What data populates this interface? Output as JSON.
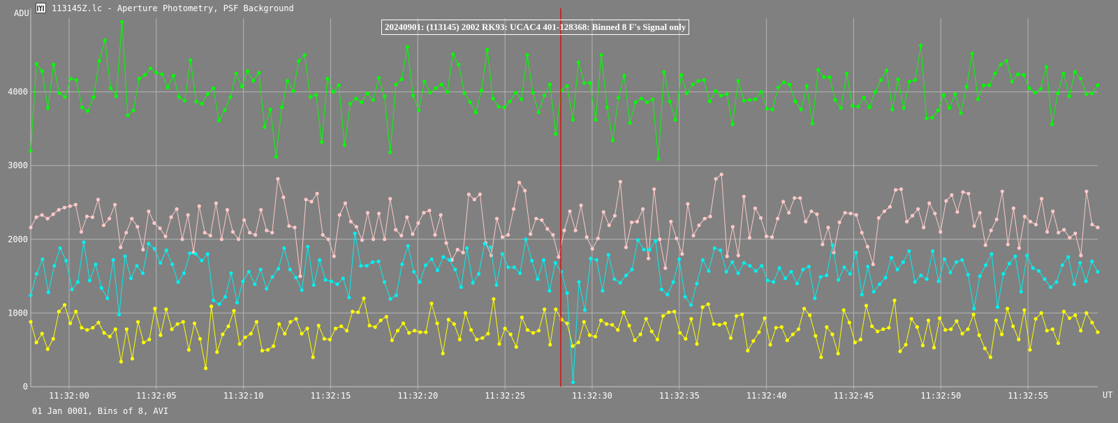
{
  "window": {
    "title": "113145Z.lc - Aperture Photometry, PSF Background",
    "icon": "lightcurve-app-icon"
  },
  "chart_data": {
    "type": "line",
    "title": "20240901: (113145) 2002 RK93: UCAC4 401-128368: Binned 8 F's Signal only",
    "ylabel": "ADU",
    "xlabel": "UT",
    "footer": "01 Jan 0001, Bins of 8, AVI",
    "ylim": [
      0,
      5000
    ],
    "yticks": [
      0,
      1000,
      2000,
      3000,
      4000
    ],
    "xlim_seconds": [
      57.8,
      119.0
    ],
    "xticks": [
      {
        "t": 60,
        "label": "11:32:00"
      },
      {
        "t": 65,
        "label": "11:32:05"
      },
      {
        "t": 70,
        "label": "11:32:10"
      },
      {
        "t": 75,
        "label": "11:32:15"
      },
      {
        "t": 80,
        "label": "11:32:20"
      },
      {
        "t": 85,
        "label": "11:32:25"
      },
      {
        "t": 90,
        "label": "11:32:30"
      },
      {
        "t": 95,
        "label": "11:32:35"
      },
      {
        "t": 100,
        "label": "11:32:40"
      },
      {
        "t": 105,
        "label": "11:32:45"
      },
      {
        "t": 110,
        "label": "11:32:50"
      },
      {
        "t": 115,
        "label": "11:32:55"
      }
    ],
    "cursor_t": 88.2,
    "grid": true,
    "colors": {
      "background": "#808080",
      "grid": "#b4b4b4",
      "cursor": "#e00000"
    },
    "series": [
      {
        "color": "#00ff00",
        "values": [
          3200,
          4380,
          4280,
          3780,
          4370,
          3980,
          3930,
          4180,
          4160,
          3790,
          3740,
          3930,
          4420,
          4700,
          4050,
          3940,
          4950,
          3680,
          3750,
          4180,
          4230,
          4320,
          4260,
          4240,
          4060,
          4220,
          3930,
          3880,
          4430,
          3870,
          3840,
          3970,
          4050,
          3610,
          3750,
          3930,
          4250,
          4070,
          4280,
          4150,
          4260,
          3520,
          3760,
          3120,
          3790,
          4150,
          4010,
          4420,
          4500,
          3930,
          3960,
          3320,
          4180,
          4000,
          4090,
          3280,
          3840,
          3910,
          3860,
          3980,
          3890,
          4190,
          3940,
          3180,
          4100,
          4170,
          4610,
          3950,
          3750,
          4140,
          3990,
          4050,
          4100,
          4000,
          4510,
          4370,
          3980,
          3860,
          3720,
          4020,
          4570,
          3910,
          3800,
          3790,
          3870,
          3990,
          3900,
          4500,
          3990,
          3720,
          3950,
          4100,
          3430,
          4020,
          4080,
          3620,
          4400,
          4120,
          4120,
          3620,
          4500,
          3790,
          3340,
          3920,
          4220,
          3580,
          3860,
          3910,
          3860,
          3900,
          3090,
          4270,
          3870,
          3620,
          4230,
          3980,
          4100,
          4150,
          4160,
          3870,
          4010,
          3950,
          3970,
          3560,
          4150,
          3880,
          3890,
          3900,
          4000,
          3770,
          3760,
          4060,
          4130,
          4100,
          3870,
          3760,
          4080,
          3570,
          4300,
          4200,
          4200,
          3890,
          3780,
          4250,
          3810,
          3800,
          3920,
          3790,
          4000,
          4160,
          4290,
          3760,
          4170,
          3780,
          4140,
          4160,
          4630,
          3640,
          3650,
          3750,
          3960,
          3780,
          3970,
          3710,
          4070,
          4520,
          3900,
          4090,
          4090,
          4250,
          4370,
          4420,
          4140,
          4240,
          4230,
          4050,
          3990,
          4040,
          4340,
          3560,
          3980,
          4250,
          3940,
          4270,
          4180,
          3970,
          3980,
          4090
        ]
      },
      {
        "color": "#ffc8c8",
        "values": [
          2160,
          2300,
          2330,
          2280,
          2340,
          2400,
          2430,
          2450,
          2470,
          2100,
          2310,
          2300,
          2540,
          2190,
          2280,
          2470,
          1890,
          2090,
          2280,
          2170,
          1860,
          2380,
          2220,
          2150,
          2040,
          2300,
          2410,
          2000,
          2330,
          1820,
          2450,
          2090,
          2050,
          2490,
          2000,
          2400,
          2100,
          2000,
          2260,
          2090,
          2060,
          2400,
          2120,
          2090,
          2820,
          2570,
          2180,
          2160,
          1500,
          2540,
          2510,
          2620,
          2060,
          2000,
          1770,
          2330,
          2490,
          2240,
          2170,
          1990,
          2360,
          2000,
          2350,
          2000,
          2550,
          2130,
          2050,
          2300,
          2070,
          2220,
          2360,
          2390,
          2060,
          2330,
          1950,
          1720,
          1860,
          1820,
          2610,
          2540,
          2610,
          1950,
          1780,
          2280,
          2030,
          2060,
          2410,
          2770,
          2660,
          2070,
          2280,
          2260,
          2140,
          2060,
          1760,
          2120,
          2380,
          2120,
          2460,
          2030,
          1870,
          2010,
          2370,
          2190,
          2320,
          2780,
          1890,
          2230,
          2240,
          2410,
          1740,
          2680,
          2000,
          1610,
          2240,
          2010,
          1800,
          2480,
          2050,
          2190,
          2280,
          2310,
          2820,
          2880,
          1770,
          2170,
          1780,
          2580,
          2020,
          2420,
          2290,
          2040,
          2030,
          2280,
          2510,
          2360,
          2560,
          2560,
          2240,
          2380,
          2340,
          1930,
          2160,
          1820,
          2230,
          2360,
          2350,
          2330,
          2090,
          1900,
          1660,
          2290,
          2380,
          2440,
          2670,
          2680,
          2240,
          2320,
          2410,
          2160,
          2490,
          2350,
          2100,
          2520,
          2600,
          2370,
          2640,
          2620,
          2180,
          2360,
          1920,
          2120,
          2270,
          2650,
          1930,
          2420,
          1880,
          2310,
          2240,
          2200,
          2550,
          2100,
          2380,
          2090,
          2130,
          2020,
          2080,
          1780,
          2650,
          2200,
          2160
        ]
      },
      {
        "color": "#00f0f0",
        "values": [
          1240,
          1530,
          1730,
          1280,
          1640,
          1880,
          1710,
          1320,
          1420,
          1960,
          1440,
          1660,
          1340,
          1200,
          1720,
          980,
          1770,
          1470,
          1640,
          1540,
          1940,
          1870,
          1680,
          1850,
          1660,
          1420,
          1540,
          1810,
          1800,
          1710,
          1800,
          1170,
          1120,
          1220,
          1540,
          1140,
          1430,
          1560,
          1390,
          1590,
          1330,
          1490,
          1600,
          1880,
          1590,
          1480,
          1310,
          1900,
          1380,
          1720,
          1450,
          1430,
          1390,
          1470,
          1210,
          2080,
          1640,
          1640,
          1690,
          1700,
          1420,
          1190,
          1240,
          1660,
          1910,
          1560,
          1420,
          1650,
          1730,
          1580,
          1760,
          1720,
          1590,
          1350,
          1880,
          1410,
          1530,
          1940,
          1890,
          1380,
          1800,
          1620,
          1620,
          1540,
          2000,
          1710,
          1460,
          1720,
          1300,
          1680,
          1560,
          1270,
          60,
          1420,
          1040,
          1740,
          1720,
          1300,
          1790,
          1460,
          1410,
          1510,
          1590,
          1990,
          1860,
          1860,
          1980,
          1320,
          1250,
          1420,
          1730,
          1220,
          1110,
          1400,
          1720,
          1570,
          1880,
          1850,
          1560,
          1690,
          1540,
          1680,
          1640,
          1570,
          1640,
          1440,
          1420,
          1610,
          1470,
          1560,
          1400,
          1590,
          1630,
          1200,
          1490,
          1510,
          1920,
          1450,
          1620,
          1530,
          1820,
          1250,
          1630,
          1290,
          1390,
          1480,
          1750,
          1590,
          1690,
          1840,
          1420,
          1510,
          1460,
          1840,
          1430,
          1730,
          1550,
          1690,
          1720,
          1520,
          1060,
          1500,
          1650,
          1800,
          1080,
          1530,
          1670,
          1770,
          1290,
          1780,
          1610,
          1570,
          1460,
          1350,
          1420,
          1650,
          1760,
          1390,
          1680,
          1430,
          1700,
          1560
        ]
      },
      {
        "color": "#ffff00",
        "values": [
          880,
          600,
          720,
          510,
          650,
          1020,
          1110,
          860,
          1020,
          800,
          770,
          800,
          870,
          730,
          680,
          780,
          340,
          780,
          380,
          880,
          600,
          640,
          1060,
          700,
          1050,
          780,
          850,
          880,
          500,
          860,
          650,
          250,
          1090,
          470,
          710,
          820,
          1030,
          580,
          670,
          720,
          880,
          490,
          500,
          550,
          850,
          720,
          880,
          920,
          720,
          790,
          400,
          830,
          650,
          640,
          790,
          820,
          760,
          1020,
          1010,
          1200,
          830,
          810,
          900,
          950,
          630,
          760,
          860,
          730,
          760,
          740,
          740,
          1130,
          860,
          450,
          910,
          850,
          640,
          1000,
          770,
          640,
          660,
          720,
          1190,
          580,
          790,
          710,
          540,
          940,
          770,
          730,
          760,
          1050,
          570,
          1050,
          910,
          860,
          550,
          600,
          880,
          700,
          680,
          900,
          850,
          840,
          770,
          1010,
          830,
          630,
          710,
          920,
          750,
          640,
          960,
          1010,
          1020,
          730,
          650,
          920,
          580,
          1080,
          1120,
          850,
          840,
          860,
          660,
          960,
          980,
          490,
          620,
          740,
          930,
          570,
          800,
          810,
          630,
          710,
          780,
          1060,
          970,
          690,
          400,
          810,
          710,
          450,
          1040,
          870,
          600,
          640,
          1100,
          820,
          750,
          780,
          800,
          1170,
          480,
          570,
          920,
          810,
          560,
          900,
          530,
          930,
          770,
          780,
          890,
          720,
          780,
          980,
          700,
          520,
          400,
          900,
          710,
          1060,
          820,
          640,
          1040,
          500,
          920,
          1000,
          760,
          780,
          590,
          1020,
          930,
          970,
          760,
          1000,
          870,
          740
        ]
      }
    ]
  }
}
